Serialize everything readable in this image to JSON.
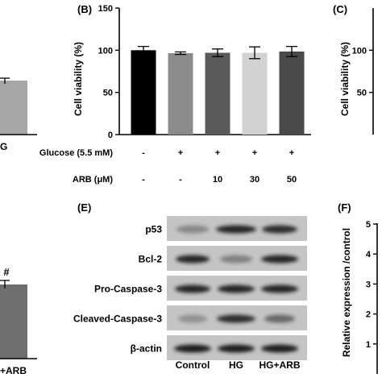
{
  "panels": {
    "A_partial": {
      "tick_label": "G",
      "bar_color": "#a6a6a6"
    },
    "B": {
      "letter": "(B)"
    },
    "C": {
      "letter": "(C)",
      "ylabel": "Cell viability (%)",
      "ytick_values": [
        100,
        50
      ]
    },
    "D_partial": {
      "significance_mark": "#",
      "x_label": "+ARB",
      "bar_color": "#6e6e6e"
    },
    "E": {
      "letter": "(E)",
      "proteins": [
        "p53",
        "Bcl-2",
        "Pro-Caspase-3",
        "Cleaved-Caspase-3",
        "β-actin"
      ],
      "lanes": [
        "Control",
        "HG",
        "HG+ARB"
      ]
    },
    "F": {
      "letter": "(F)",
      "ylabel": "Relative expression /control",
      "ytick_values": [
        5,
        4,
        3,
        2,
        1
      ]
    }
  },
  "chart_data": {
    "type": "bar",
    "title": "",
    "ylabel": "Cell viability (%)",
    "ylim": [
      0,
      150
    ],
    "yticks": [
      0,
      50,
      100,
      150
    ],
    "treatment_rows": [
      {
        "label": "Glucose (5.5 mM)",
        "values": [
          "-",
          "+",
          "+",
          "+",
          "+"
        ]
      },
      {
        "label": "ARB (μM)",
        "values": [
          "-",
          "-",
          "10",
          "30",
          "50"
        ]
      }
    ],
    "bars": [
      {
        "value": 100,
        "error": 4.5,
        "color": "#000000"
      },
      {
        "value": 96.5,
        "error": 1.5,
        "color": "#8c8c8c"
      },
      {
        "value": 97,
        "error": 4.5,
        "color": "#5a5a5a"
      },
      {
        "value": 97,
        "error": 7,
        "color": "#d2d2d2"
      },
      {
        "value": 98.5,
        "error": 6,
        "color": "#4a4a4a"
      }
    ]
  }
}
